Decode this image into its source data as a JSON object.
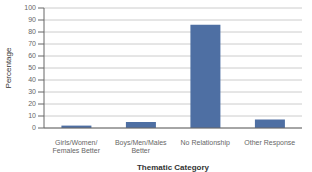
{
  "chart_data": {
    "type": "bar",
    "categories": [
      "Girls/Women/\nFemales Better",
      "Boys/Men/Males\nBetter",
      "No Relationship",
      "Other Response"
    ],
    "values": [
      2,
      5,
      86,
      7
    ],
    "color": "#4e6fa3",
    "xlabel": "Thematic Category",
    "ylabel": "Percentage",
    "ylim": [
      0,
      100
    ],
    "yticks": [
      0,
      10,
      20,
      30,
      40,
      50,
      60,
      70,
      80,
      90,
      100
    ],
    "grid": true
  }
}
